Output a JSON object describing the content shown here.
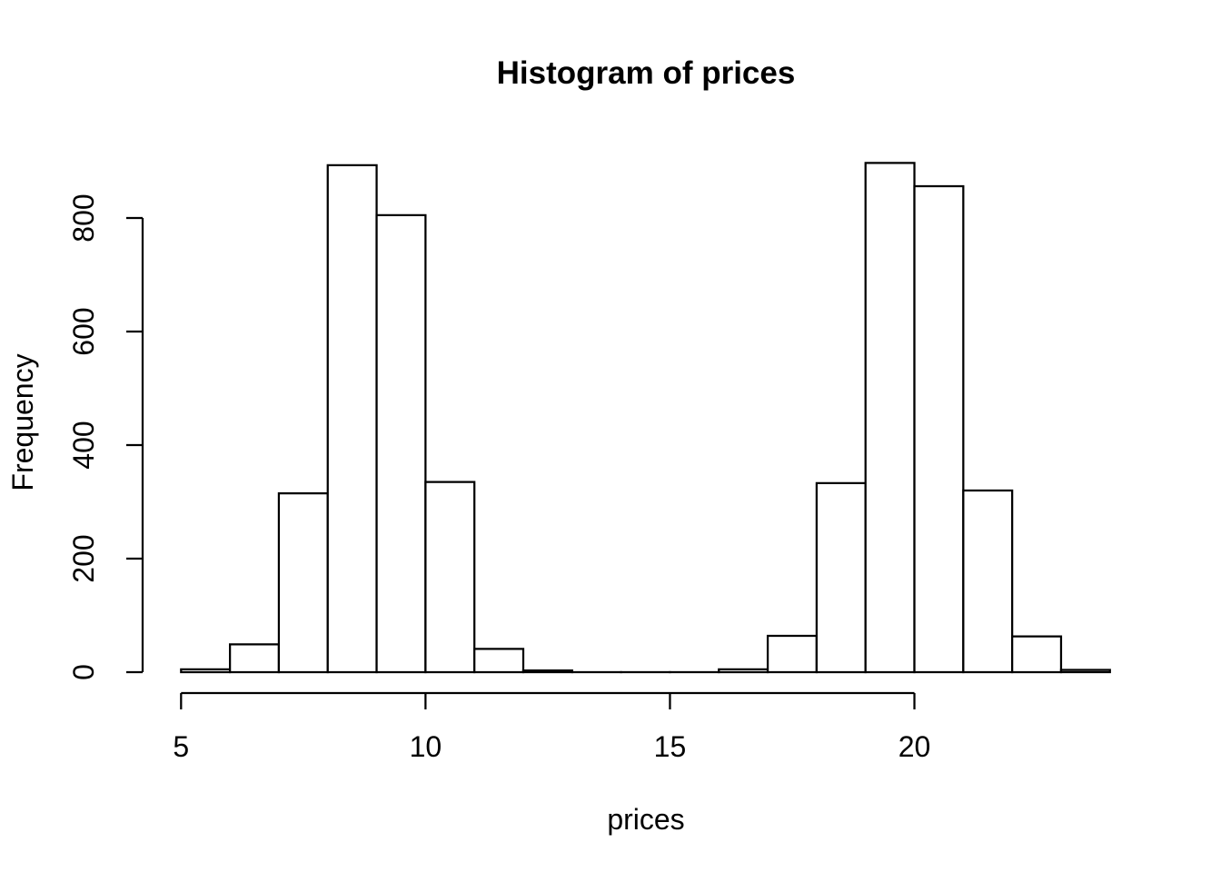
{
  "chart_data": {
    "type": "bar",
    "subtype": "histogram",
    "title": "Histogram of prices",
    "xlabel": "prices",
    "ylabel": "Frequency",
    "bin_edges": [
      5,
      6,
      7,
      8,
      9,
      10,
      11,
      12,
      13,
      14,
      15,
      16,
      17,
      18,
      19,
      20,
      21,
      22,
      23,
      24
    ],
    "frequencies": [
      5,
      49,
      315,
      893,
      805,
      335,
      41,
      3,
      0,
      0,
      0,
      5,
      64,
      333,
      897,
      856,
      320,
      63,
      4
    ],
    "x_ticks": [
      5,
      10,
      15,
      20
    ],
    "y_ticks": [
      0,
      200,
      400,
      600,
      800
    ],
    "xlim": [
      5,
      24
    ],
    "ylim": [
      0,
      800
    ],
    "grid": "off",
    "legend": "none",
    "bar_fill": "#ffffff",
    "bar_stroke": "#000000",
    "axis_color": "#000000",
    "background": "#ffffff"
  }
}
